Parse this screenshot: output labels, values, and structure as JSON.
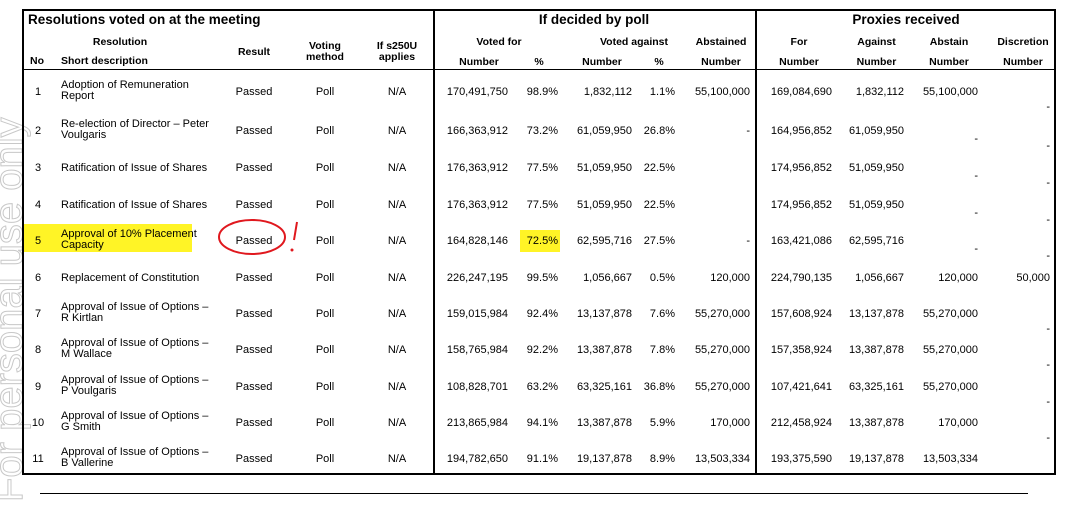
{
  "watermark": "For personal use only",
  "groups": {
    "left": "Resolutions voted on at the meeting",
    "poll": "If decided by poll",
    "proxies": "Proxies received"
  },
  "headers": {
    "no": "No",
    "resolution": "Resolution",
    "short_description": "Short description",
    "result": "Result",
    "voting_method_1": "Voting",
    "voting_method_2": "method",
    "s250u_1": "If s250U",
    "s250u_2": "applies",
    "voted_for": "Voted for",
    "voted_against": "Voted against",
    "abstained": "Abstained",
    "number": "Number",
    "percent": "%",
    "for": "For",
    "against": "Against",
    "abstain": "Abstain",
    "discretion": "Discretion"
  },
  "rows": [
    {
      "no": "1",
      "desc1": "Adoption of Remuneration",
      "desc2": "Report",
      "result": "Passed",
      "method": "Poll",
      "s250u": "N/A",
      "for_num": "170,491,750",
      "for_pct": "98.9%",
      "against_num": "1,832,112",
      "against_pct": "1.1%",
      "abstained": "55,100,000",
      "p_for": "169,084,690",
      "p_against": "1,832,112",
      "p_abstain": "55,100,000",
      "p_discretion": "-"
    },
    {
      "no": "2",
      "desc1": "Re-election of Director – Peter",
      "desc2": "Voulgaris",
      "result": "Passed",
      "method": "Poll",
      "s250u": "N/A",
      "for_num": "166,363,912",
      "for_pct": "73.2%",
      "against_num": "61,059,950",
      "against_pct": "26.8%",
      "abstained": "-",
      "p_for": "164,956,852",
      "p_against": "61,059,950",
      "p_abstain": "-",
      "p_discretion": "-"
    },
    {
      "no": "3",
      "desc1": "Ratification of Issue of Shares",
      "desc2": "",
      "result": "Passed",
      "method": "Poll",
      "s250u": "N/A",
      "for_num": "176,363,912",
      "for_pct": "77.5%",
      "against_num": "51,059,950",
      "against_pct": "22.5%",
      "abstained": "",
      "p_for": "174,956,852",
      "p_against": "51,059,950",
      "p_abstain": "-",
      "p_discretion": "-"
    },
    {
      "no": "4",
      "desc1": "Ratification of Issue of Shares",
      "desc2": "",
      "result": "Passed",
      "method": "Poll",
      "s250u": "N/A",
      "for_num": "176,363,912",
      "for_pct": "77.5%",
      "against_num": "51,059,950",
      "against_pct": "22.5%",
      "abstained": "",
      "p_for": "174,956,852",
      "p_against": "51,059,950",
      "p_abstain": "-",
      "p_discretion": "-"
    },
    {
      "no": "5",
      "desc1": "Approval of 10% Placement",
      "desc2": "Capacity",
      "result": "Passed",
      "method": "Poll",
      "s250u": "N/A",
      "for_num": "164,828,146",
      "for_pct": "72.5%",
      "against_num": "62,595,716",
      "against_pct": "27.5%",
      "abstained": "-",
      "p_for": "163,421,086",
      "p_against": "62,595,716",
      "p_abstain": "-",
      "p_discretion": "-"
    },
    {
      "no": "6",
      "desc1": "Replacement  of Constitution",
      "desc2": "",
      "result": "Passed",
      "method": "Poll",
      "s250u": "N/A",
      "for_num": "226,247,195",
      "for_pct": "99.5%",
      "against_num": "1,056,667",
      "against_pct": "0.5%",
      "abstained": "120,000",
      "p_for": "224,790,135",
      "p_against": "1,056,667",
      "p_abstain": "120,000",
      "p_discretion": "50,000"
    },
    {
      "no": "7",
      "desc1": "Approval of Issue of Options –",
      "desc2": "R Kirtlan",
      "result": "Passed",
      "method": "Poll",
      "s250u": "N/A",
      "for_num": "159,015,984",
      "for_pct": "92.4%",
      "against_num": "13,137,878",
      "against_pct": "7.6%",
      "abstained": "55,270,000",
      "p_for": "157,608,924",
      "p_against": "13,137,878",
      "p_abstain": "55,270,000",
      "p_discretion": "-"
    },
    {
      "no": "8",
      "desc1": "Approval of Issue of Options –",
      "desc2": "M Wallace",
      "result": "Passed",
      "method": "Poll",
      "s250u": "N/A",
      "for_num": "158,765,984",
      "for_pct": "92.2%",
      "against_num": "13,387,878",
      "against_pct": "7.8%",
      "abstained": "55,270,000",
      "p_for": "157,358,924",
      "p_against": "13,387,878",
      "p_abstain": "55,270,000",
      "p_discretion": "-"
    },
    {
      "no": "9",
      "desc1": "Approval of Issue of Options –",
      "desc2": "P Voulgaris",
      "result": "Passed",
      "method": "Poll",
      "s250u": "N/A",
      "for_num": "108,828,701",
      "for_pct": "63.2%",
      "against_num": "63,325,161",
      "against_pct": "36.8%",
      "abstained": "55,270,000",
      "p_for": "107,421,641",
      "p_against": "63,325,161",
      "p_abstain": "55,270,000",
      "p_discretion": "-"
    },
    {
      "no": "10",
      "desc1": "Approval of Issue of Options –",
      "desc2": "G Smith",
      "result": "Passed",
      "method": "Poll",
      "s250u": "N/A",
      "for_num": "213,865,984",
      "for_pct": "94.1%",
      "against_num": "13,387,878",
      "against_pct": "5.9%",
      "abstained": "170,000",
      "p_for": "212,458,924",
      "p_against": "13,387,878",
      "p_abstain": "170,000",
      "p_discretion": "-"
    },
    {
      "no": "11",
      "desc1": "Approval of Issue of Options –",
      "desc2": "B Vallerine",
      "result": "Passed",
      "method": "Poll",
      "s250u": "N/A",
      "for_num": "194,782,650",
      "for_pct": "91.1%",
      "against_num": "19,137,878",
      "against_pct": "8.9%",
      "abstained": "13,503,334",
      "p_for": "193,375,590",
      "p_against": "19,137,878",
      "p_abstain": "13,503,334",
      "p_discretion": "-"
    }
  ],
  "annotations": {
    "highlight_color": "#fff200",
    "pen_color": "#e0181e",
    "mark": "!"
  }
}
